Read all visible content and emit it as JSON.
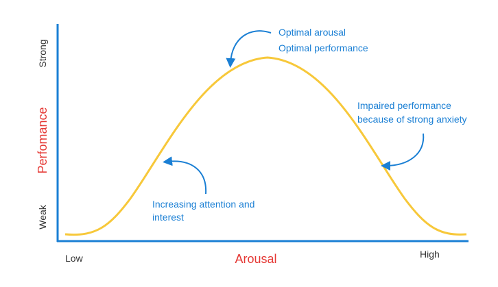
{
  "axes": {
    "y_top": "Strong",
    "y_label": "Perfomance",
    "y_bottom": "Weak",
    "x_left": "Low",
    "x_label": "Arousal",
    "x_right": "High"
  },
  "annotations": {
    "peak": [
      "Optimal arousal",
      "Optimal performance"
    ],
    "right": [
      "Impaired performance",
      "because of strong anxiety"
    ],
    "left": [
      "Increasing attention and",
      "interest"
    ]
  }
}
